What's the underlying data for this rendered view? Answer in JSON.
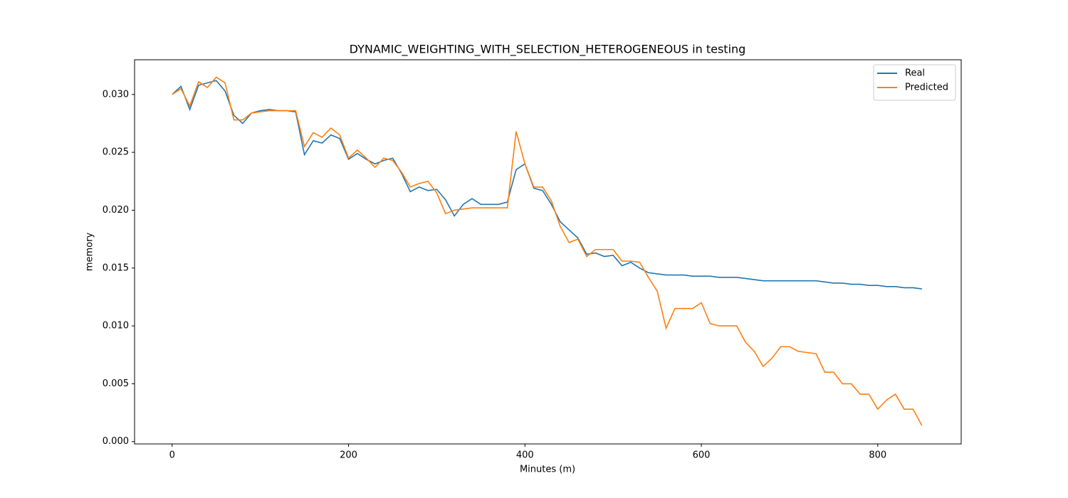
{
  "chart_data": {
    "type": "line",
    "title": "DYNAMIC_WEIGHTING_WITH_SELECTION_HETEROGENEOUS in testing",
    "x_label": "Minutes (m)",
    "y_label": "memory",
    "x": [
      0,
      10,
      20,
      30,
      40,
      50,
      60,
      70,
      80,
      90,
      100,
      110,
      120,
      130,
      140,
      150,
      160,
      170,
      180,
      190,
      200,
      210,
      220,
      230,
      240,
      250,
      260,
      270,
      280,
      290,
      300,
      310,
      320,
      330,
      340,
      350,
      360,
      370,
      380,
      390,
      400,
      410,
      420,
      430,
      440,
      450,
      460,
      470,
      480,
      490,
      500,
      510,
      520,
      530,
      540,
      550,
      560,
      570,
      580,
      590,
      600,
      610,
      620,
      630,
      640,
      650,
      660,
      670,
      680,
      690,
      700,
      710,
      720,
      730,
      740,
      750,
      760,
      770,
      780,
      790,
      800,
      810,
      820,
      830,
      840,
      850
    ],
    "series": [
      {
        "name": "Real",
        "color": "#1f77b4",
        "values": [
          0.03,
          0.0307,
          0.0287,
          0.0308,
          0.031,
          0.0312,
          0.0303,
          0.0282,
          0.0275,
          0.0284,
          0.0286,
          0.0287,
          0.0286,
          0.0286,
          0.0285,
          0.0248,
          0.026,
          0.0258,
          0.0265,
          0.0262,
          0.0244,
          0.0249,
          0.0244,
          0.024,
          0.0243,
          0.0245,
          0.0232,
          0.0216,
          0.022,
          0.0217,
          0.0218,
          0.0209,
          0.0195,
          0.0205,
          0.021,
          0.0205,
          0.0205,
          0.0205,
          0.0207,
          0.0235,
          0.024,
          0.0219,
          0.0217,
          0.0205,
          0.019,
          0.0183,
          0.0176,
          0.0162,
          0.0163,
          0.016,
          0.0161,
          0.0152,
          0.0155,
          0.015,
          0.0146,
          0.0145,
          0.0144,
          0.0144,
          0.0144,
          0.0143,
          0.0143,
          0.0143,
          0.0142,
          0.0142,
          0.0142,
          0.0141,
          0.014,
          0.0139,
          0.0139,
          0.0139,
          0.0139,
          0.0139,
          0.0139,
          0.0139,
          0.0138,
          0.0137,
          0.0137,
          0.0136,
          0.0136,
          0.0135,
          0.0135,
          0.0134,
          0.0134,
          0.0133,
          0.0133,
          0.0132
        ]
      },
      {
        "name": "Predicted",
        "color": "#ff7f0e",
        "values": [
          0.03,
          0.0305,
          0.029,
          0.0311,
          0.0306,
          0.0315,
          0.031,
          0.0278,
          0.0278,
          0.0284,
          0.0285,
          0.0286,
          0.0286,
          0.0286,
          0.0286,
          0.0255,
          0.0267,
          0.0263,
          0.0271,
          0.0265,
          0.0245,
          0.0252,
          0.0245,
          0.0237,
          0.0245,
          0.0243,
          0.0233,
          0.022,
          0.0223,
          0.0225,
          0.0215,
          0.0197,
          0.02,
          0.0201,
          0.0202,
          0.0202,
          0.0202,
          0.0202,
          0.0202,
          0.0268,
          0.024,
          0.022,
          0.022,
          0.0208,
          0.0186,
          0.0172,
          0.0175,
          0.016,
          0.0166,
          0.0166,
          0.0166,
          0.0156,
          0.0156,
          0.0155,
          0.0142,
          0.013,
          0.0098,
          0.0115,
          0.0115,
          0.0115,
          0.012,
          0.0102,
          0.01,
          0.01,
          0.01,
          0.0086,
          0.0078,
          0.0065,
          0.0072,
          0.0082,
          0.0082,
          0.0078,
          0.0077,
          0.0076,
          0.006,
          0.006,
          0.005,
          0.005,
          0.0041,
          0.0041,
          0.0028,
          0.0036,
          0.0041,
          0.0028,
          0.0028,
          0.0014
        ]
      }
    ],
    "xlim": [
      -42.6,
      894.6
    ],
    "ylim": [
      -0.0002,
      0.033
    ],
    "xticks": [
      0,
      200,
      400,
      600,
      800
    ],
    "yticks": [
      {
        "value": 0,
        "label": "0.000"
      },
      {
        "value": 0.005,
        "label": "0.005"
      },
      {
        "value": 0.01,
        "label": "0.010"
      },
      {
        "value": 0.015,
        "label": "0.015"
      },
      {
        "value": 0.02,
        "label": "0.020"
      },
      {
        "value": 0.025,
        "label": "0.025"
      },
      {
        "value": 0.03,
        "label": "0.030"
      }
    ],
    "legend": "upper right",
    "grid": false
  }
}
